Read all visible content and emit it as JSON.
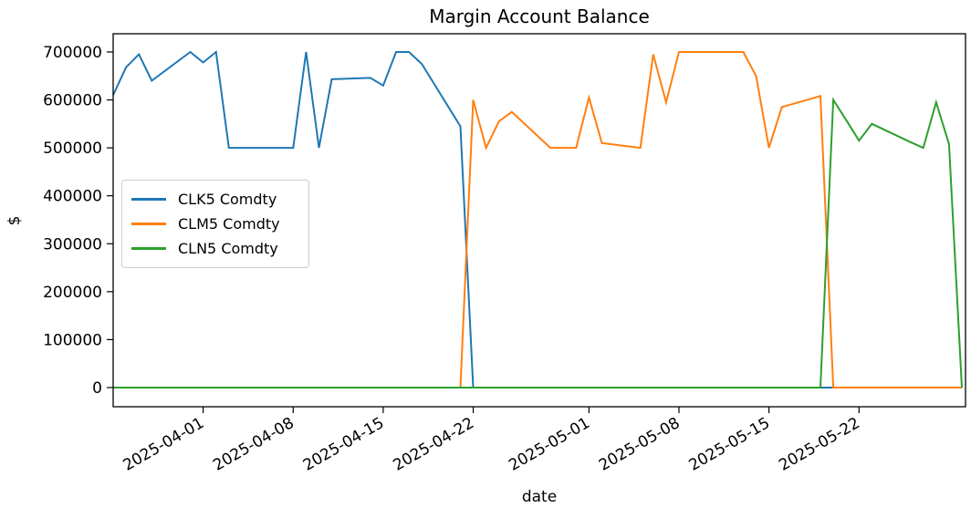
{
  "figure": {
    "title": "Margin Account Balance",
    "xlabel": "date",
    "ylabel": "$",
    "background_color": "#ffffff",
    "spine_color": "#000000",
    "legend": {
      "position": "upper-left-inside",
      "entries": [
        "CLK5 Comdty",
        "CLM5 Comdty",
        "CLN5 Comdty"
      ]
    }
  },
  "chart_data": {
    "type": "line",
    "title": "Margin Account Balance",
    "xlabel": "date",
    "ylabel": "$",
    "grid": false,
    "x_range": [
      "2025-03-25",
      "2025-05-30"
    ],
    "ylim": [
      -40000,
      738000
    ],
    "yticks": [
      0,
      100000,
      200000,
      300000,
      400000,
      500000,
      600000,
      700000
    ],
    "xticks": [
      "2025-04-01",
      "2025-04-08",
      "2025-04-15",
      "2025-04-22",
      "2025-05-01",
      "2025-05-08",
      "2025-05-15",
      "2025-05-22"
    ],
    "x": [
      "2025-03-25",
      "2025-03-26",
      "2025-03-27",
      "2025-03-28",
      "2025-03-31",
      "2025-04-01",
      "2025-04-02",
      "2025-04-03",
      "2025-04-04",
      "2025-04-07",
      "2025-04-08",
      "2025-04-09",
      "2025-04-10",
      "2025-04-11",
      "2025-04-14",
      "2025-04-15",
      "2025-04-16",
      "2025-04-17",
      "2025-04-18",
      "2025-04-21",
      "2025-04-22",
      "2025-04-23",
      "2025-04-24",
      "2025-04-25",
      "2025-04-28",
      "2025-04-29",
      "2025-04-30",
      "2025-05-01",
      "2025-05-02",
      "2025-05-05",
      "2025-05-06",
      "2025-05-07",
      "2025-05-08",
      "2025-05-09",
      "2025-05-12",
      "2025-05-13",
      "2025-05-14",
      "2025-05-15",
      "2025-05-16",
      "2025-05-19",
      "2025-05-20",
      "2025-05-21",
      "2025-05-22",
      "2025-05-23",
      "2025-05-26",
      "2025-05-27",
      "2025-05-28",
      "2025-05-29",
      "2025-05-30"
    ],
    "series": [
      {
        "name": "CLK5 Comdty",
        "color": "#1f77b4",
        "values": [
          610000,
          668000,
          695000,
          640000,
          700000,
          678000,
          700000,
          500000,
          500000,
          500000,
          500000,
          700000,
          500000,
          643000,
          646000,
          630000,
          700000,
          700000,
          675000,
          545000,
          0,
          0,
          0,
          0,
          0,
          0,
          0,
          0,
          0,
          0,
          0,
          0,
          0,
          0,
          0,
          0,
          0,
          0,
          0,
          0,
          0,
          0,
          0,
          0,
          0,
          0,
          0,
          0,
          0
        ]
      },
      {
        "name": "CLM5 Comdty",
        "color": "#ff7f0e",
        "values": [
          0,
          0,
          0,
          0,
          0,
          0,
          0,
          0,
          0,
          0,
          0,
          0,
          0,
          0,
          0,
          0,
          0,
          0,
          0,
          0,
          600000,
          500000,
          555000,
          575000,
          500000,
          500000,
          500000,
          605000,
          510000,
          500000,
          695000,
          595000,
          700000,
          700000,
          700000,
          700000,
          650000,
          500000,
          585000,
          608000,
          0,
          0,
          0,
          0,
          0,
          0,
          0,
          0,
          0
        ]
      },
      {
        "name": "CLN5 Comdty",
        "color": "#2ca02c",
        "values": [
          0,
          0,
          0,
          0,
          0,
          0,
          0,
          0,
          0,
          0,
          0,
          0,
          0,
          0,
          0,
          0,
          0,
          0,
          0,
          0,
          0,
          0,
          0,
          0,
          0,
          0,
          0,
          0,
          0,
          0,
          0,
          0,
          0,
          0,
          0,
          0,
          0,
          0,
          0,
          0,
          600000,
          558000,
          515000,
          550000,
          512000,
          500000,
          595000,
          508000,
          0
        ]
      }
    ]
  }
}
